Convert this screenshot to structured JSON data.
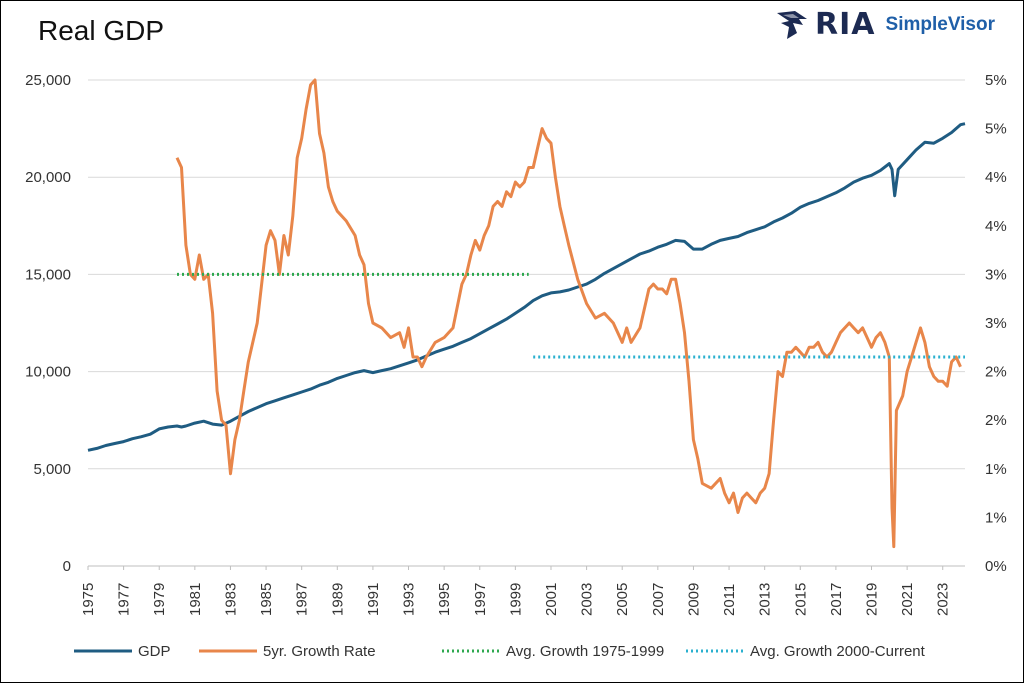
{
  "header": {
    "title": "Real GDP",
    "logo_ria": "RIA",
    "logo_simplevisor": "SimpleVisor"
  },
  "chart_data": {
    "type": "line",
    "left_axis": {
      "ticks": [
        "0",
        "5,000",
        "10,000",
        "15,000",
        "20,000",
        "25,000"
      ],
      "range": [
        0,
        25000
      ]
    },
    "right_axis": {
      "ticks": [
        "0%",
        "1%",
        "1%",
        "2%",
        "2%",
        "3%",
        "3%",
        "4%",
        "4%",
        "5%",
        "5%"
      ],
      "range": [
        0,
        5
      ]
    },
    "x_ticks": [
      "1975",
      "1977",
      "1979",
      "1981",
      "1983",
      "1985",
      "1987",
      "1989",
      "1991",
      "1993",
      "1995",
      "1997",
      "1999",
      "2001",
      "2003",
      "2005",
      "2007",
      "2009",
      "2011",
      "2013",
      "2015",
      "2017",
      "2019",
      "2021",
      "2023"
    ],
    "x_range": [
      1975,
      2024.25
    ],
    "grid": true,
    "legend_position": "bottom",
    "colors": {
      "gdp": "#1f5c82",
      "growth": "#e8864a",
      "avg1": "#2ea84f",
      "avg2": "#2ab0cf"
    },
    "series": [
      {
        "name": "GDP",
        "axis": "left",
        "style": "solid",
        "points": [
          [
            1975.0,
            5950
          ],
          [
            1975.5,
            6050
          ],
          [
            1976.0,
            6200
          ],
          [
            1976.5,
            6300
          ],
          [
            1977.0,
            6400
          ],
          [
            1977.5,
            6550
          ],
          [
            1978.0,
            6650
          ],
          [
            1978.5,
            6780
          ],
          [
            1979.0,
            7050
          ],
          [
            1979.5,
            7150
          ],
          [
            1980.0,
            7200
          ],
          [
            1980.25,
            7150
          ],
          [
            1980.5,
            7200
          ],
          [
            1981.0,
            7350
          ],
          [
            1981.5,
            7450
          ],
          [
            1982.0,
            7300
          ],
          [
            1982.5,
            7250
          ],
          [
            1983.0,
            7450
          ],
          [
            1983.5,
            7700
          ],
          [
            1984.0,
            7950
          ],
          [
            1984.5,
            8150
          ],
          [
            1985.0,
            8350
          ],
          [
            1985.5,
            8500
          ],
          [
            1986.0,
            8650
          ],
          [
            1986.5,
            8800
          ],
          [
            1987.0,
            8950
          ],
          [
            1987.5,
            9100
          ],
          [
            1988.0,
            9300
          ],
          [
            1988.5,
            9450
          ],
          [
            1989.0,
            9650
          ],
          [
            1989.5,
            9800
          ],
          [
            1990.0,
            9950
          ],
          [
            1990.5,
            10050
          ],
          [
            1991.0,
            9950
          ],
          [
            1991.5,
            10050
          ],
          [
            1992.0,
            10150
          ],
          [
            1992.5,
            10300
          ],
          [
            1993.0,
            10450
          ],
          [
            1993.5,
            10600
          ],
          [
            1994.0,
            10800
          ],
          [
            1994.5,
            11000
          ],
          [
            1995.0,
            11150
          ],
          [
            1995.5,
            11300
          ],
          [
            1996.0,
            11500
          ],
          [
            1996.5,
            11700
          ],
          [
            1997.0,
            11950
          ],
          [
            1997.5,
            12200
          ],
          [
            1998.0,
            12450
          ],
          [
            1998.5,
            12700
          ],
          [
            1999.0,
            13000
          ],
          [
            1999.5,
            13300
          ],
          [
            2000.0,
            13650
          ],
          [
            2000.5,
            13900
          ],
          [
            2001.0,
            14050
          ],
          [
            2001.5,
            14100
          ],
          [
            2002.0,
            14200
          ],
          [
            2002.5,
            14350
          ],
          [
            2003.0,
            14500
          ],
          [
            2003.5,
            14750
          ],
          [
            2004.0,
            15050
          ],
          [
            2004.5,
            15300
          ],
          [
            2005.0,
            15550
          ],
          [
            2005.5,
            15800
          ],
          [
            2006.0,
            16050
          ],
          [
            2006.5,
            16200
          ],
          [
            2007.0,
            16400
          ],
          [
            2007.5,
            16550
          ],
          [
            2008.0,
            16750
          ],
          [
            2008.5,
            16700
          ],
          [
            2009.0,
            16300
          ],
          [
            2009.5,
            16300
          ],
          [
            2010.0,
            16550
          ],
          [
            2010.5,
            16750
          ],
          [
            2011.0,
            16850
          ],
          [
            2011.5,
            16950
          ],
          [
            2012.0,
            17150
          ],
          [
            2012.5,
            17300
          ],
          [
            2013.0,
            17450
          ],
          [
            2013.5,
            17700
          ],
          [
            2014.0,
            17900
          ],
          [
            2014.5,
            18150
          ],
          [
            2015.0,
            18450
          ],
          [
            2015.5,
            18650
          ],
          [
            2016.0,
            18800
          ],
          [
            2016.5,
            19000
          ],
          [
            2017.0,
            19200
          ],
          [
            2017.5,
            19450
          ],
          [
            2018.0,
            19750
          ],
          [
            2018.5,
            19950
          ],
          [
            2019.0,
            20100
          ],
          [
            2019.5,
            20350
          ],
          [
            2020.0,
            20700
          ],
          [
            2020.15,
            20400
          ],
          [
            2020.3,
            19050
          ],
          [
            2020.5,
            20400
          ],
          [
            2021.0,
            20900
          ],
          [
            2021.5,
            21400
          ],
          [
            2022.0,
            21800
          ],
          [
            2022.5,
            21750
          ],
          [
            2023.0,
            22000
          ],
          [
            2023.5,
            22300
          ],
          [
            2024.0,
            22700
          ],
          [
            2024.25,
            22750
          ]
        ]
      },
      {
        "name": "5yr. Growth Rate",
        "axis": "right",
        "style": "solid",
        "points": [
          [
            1980.0,
            4.2
          ],
          [
            1980.25,
            4.1
          ],
          [
            1980.5,
            3.3
          ],
          [
            1980.75,
            3.0
          ],
          [
            1981.0,
            2.95
          ],
          [
            1981.25,
            3.2
          ],
          [
            1981.5,
            2.95
          ],
          [
            1981.75,
            3.0
          ],
          [
            1982.0,
            2.6
          ],
          [
            1982.25,
            1.8
          ],
          [
            1982.5,
            1.5
          ],
          [
            1982.75,
            1.45
          ],
          [
            1983.0,
            0.95
          ],
          [
            1983.25,
            1.3
          ],
          [
            1983.5,
            1.5
          ],
          [
            1983.75,
            1.8
          ],
          [
            1984.0,
            2.1
          ],
          [
            1984.5,
            2.5
          ],
          [
            1985.0,
            3.3
          ],
          [
            1985.25,
            3.45
          ],
          [
            1985.5,
            3.35
          ],
          [
            1985.75,
            3.0
          ],
          [
            1986.0,
            3.4
          ],
          [
            1986.25,
            3.2
          ],
          [
            1986.5,
            3.6
          ],
          [
            1986.75,
            4.2
          ],
          [
            1987.0,
            4.4
          ],
          [
            1987.25,
            4.7
          ],
          [
            1987.5,
            4.95
          ],
          [
            1987.75,
            5.0
          ],
          [
            1988.0,
            4.45
          ],
          [
            1988.25,
            4.25
          ],
          [
            1988.5,
            3.9
          ],
          [
            1988.75,
            3.75
          ],
          [
            1989.0,
            3.65
          ],
          [
            1989.5,
            3.55
          ],
          [
            1990.0,
            3.4
          ],
          [
            1990.25,
            3.2
          ],
          [
            1990.5,
            3.1
          ],
          [
            1990.75,
            2.7
          ],
          [
            1991.0,
            2.5
          ],
          [
            1991.5,
            2.45
          ],
          [
            1992.0,
            2.35
          ],
          [
            1992.5,
            2.4
          ],
          [
            1992.75,
            2.25
          ],
          [
            1993.0,
            2.45
          ],
          [
            1993.25,
            2.15
          ],
          [
            1993.5,
            2.15
          ],
          [
            1993.75,
            2.05
          ],
          [
            1994.0,
            2.15
          ],
          [
            1994.5,
            2.3
          ],
          [
            1995.0,
            2.35
          ],
          [
            1995.5,
            2.45
          ],
          [
            1996.0,
            2.9
          ],
          [
            1996.25,
            3.0
          ],
          [
            1996.5,
            3.2
          ],
          [
            1996.75,
            3.35
          ],
          [
            1997.0,
            3.25
          ],
          [
            1997.25,
            3.4
          ],
          [
            1997.5,
            3.5
          ],
          [
            1997.75,
            3.7
          ],
          [
            1998.0,
            3.75
          ],
          [
            1998.25,
            3.7
          ],
          [
            1998.5,
            3.85
          ],
          [
            1998.75,
            3.8
          ],
          [
            1999.0,
            3.95
          ],
          [
            1999.25,
            3.9
          ],
          [
            1999.5,
            3.95
          ],
          [
            1999.75,
            4.1
          ],
          [
            2000.0,
            4.1
          ],
          [
            2000.25,
            4.3
          ],
          [
            2000.5,
            4.5
          ],
          [
            2000.75,
            4.4
          ],
          [
            2001.0,
            4.35
          ],
          [
            2001.25,
            4.0
          ],
          [
            2001.5,
            3.7
          ],
          [
            2001.75,
            3.5
          ],
          [
            2002.0,
            3.3
          ],
          [
            2002.5,
            2.95
          ],
          [
            2003.0,
            2.7
          ],
          [
            2003.5,
            2.55
          ],
          [
            2004.0,
            2.6
          ],
          [
            2004.5,
            2.5
          ],
          [
            2005.0,
            2.3
          ],
          [
            2005.25,
            2.45
          ],
          [
            2005.5,
            2.3
          ],
          [
            2006.0,
            2.45
          ],
          [
            2006.5,
            2.85
          ],
          [
            2006.75,
            2.9
          ],
          [
            2007.0,
            2.85
          ],
          [
            2007.25,
            2.85
          ],
          [
            2007.5,
            2.8
          ],
          [
            2007.75,
            2.95
          ],
          [
            2008.0,
            2.95
          ],
          [
            2008.25,
            2.7
          ],
          [
            2008.5,
            2.4
          ],
          [
            2008.75,
            1.9
          ],
          [
            2009.0,
            1.3
          ],
          [
            2009.25,
            1.1
          ],
          [
            2009.5,
            0.85
          ],
          [
            2010.0,
            0.8
          ],
          [
            2010.5,
            0.9
          ],
          [
            2010.75,
            0.75
          ],
          [
            2011.0,
            0.65
          ],
          [
            2011.25,
            0.75
          ],
          [
            2011.5,
            0.55
          ],
          [
            2011.75,
            0.7
          ],
          [
            2012.0,
            0.75
          ],
          [
            2012.25,
            0.7
          ],
          [
            2012.5,
            0.65
          ],
          [
            2012.75,
            0.75
          ],
          [
            2013.0,
            0.8
          ],
          [
            2013.25,
            0.95
          ],
          [
            2013.5,
            1.5
          ],
          [
            2013.75,
            2.0
          ],
          [
            2014.0,
            1.95
          ],
          [
            2014.25,
            2.2
          ],
          [
            2014.5,
            2.2
          ],
          [
            2014.75,
            2.25
          ],
          [
            2015.0,
            2.2
          ],
          [
            2015.25,
            2.15
          ],
          [
            2015.5,
            2.25
          ],
          [
            2015.75,
            2.25
          ],
          [
            2016.0,
            2.3
          ],
          [
            2016.25,
            2.2
          ],
          [
            2016.5,
            2.15
          ],
          [
            2016.75,
            2.2
          ],
          [
            2017.0,
            2.3
          ],
          [
            2017.25,
            2.4
          ],
          [
            2017.5,
            2.45
          ],
          [
            2017.75,
            2.5
          ],
          [
            2018.0,
            2.45
          ],
          [
            2018.25,
            2.4
          ],
          [
            2018.5,
            2.45
          ],
          [
            2018.75,
            2.35
          ],
          [
            2019.0,
            2.25
          ],
          [
            2019.25,
            2.35
          ],
          [
            2019.5,
            2.4
          ],
          [
            2019.75,
            2.3
          ],
          [
            2020.0,
            2.15
          ],
          [
            2020.15,
            0.6
          ],
          [
            2020.25,
            0.2
          ],
          [
            2020.4,
            1.6
          ],
          [
            2020.75,
            1.75
          ],
          [
            2021.0,
            2.0
          ],
          [
            2021.25,
            2.15
          ],
          [
            2021.5,
            2.3
          ],
          [
            2021.75,
            2.45
          ],
          [
            2022.0,
            2.3
          ],
          [
            2022.25,
            2.05
          ],
          [
            2022.5,
            1.95
          ],
          [
            2022.75,
            1.9
          ],
          [
            2023.0,
            1.9
          ],
          [
            2023.25,
            1.85
          ],
          [
            2023.5,
            2.1
          ],
          [
            2023.75,
            2.15
          ],
          [
            2024.0,
            2.05
          ]
        ]
      },
      {
        "name": "Avg. Growth 1975-1999",
        "axis": "right",
        "style": "dotted",
        "points": [
          [
            1980.0,
            3.0
          ],
          [
            1999.75,
            3.0
          ]
        ]
      },
      {
        "name": "Avg. Growth 2000-Current",
        "axis": "right",
        "style": "dotted",
        "points": [
          [
            2000.0,
            2.15
          ],
          [
            2024.25,
            2.15
          ]
        ]
      }
    ]
  }
}
